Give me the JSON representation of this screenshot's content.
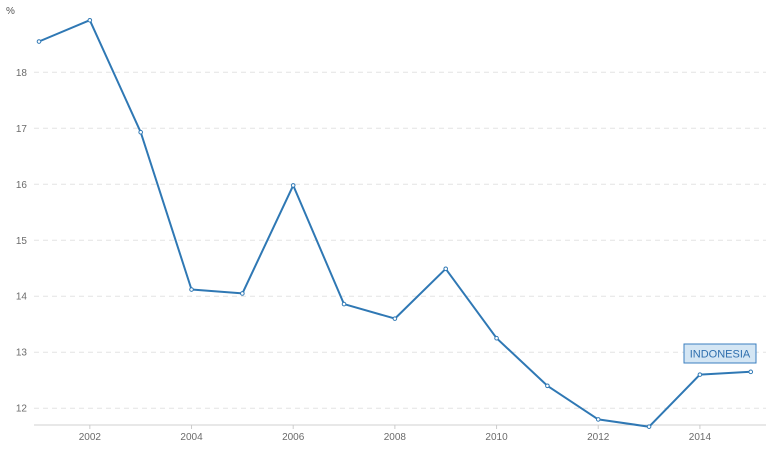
{
  "chart_data": {
    "type": "line",
    "title": "",
    "xlabel": "",
    "ylabel": "%",
    "x": [
      2001,
      2002,
      2003,
      2004,
      2005,
      2006,
      2007,
      2008,
      2009,
      2010,
      2011,
      2012,
      2013,
      2014,
      2015
    ],
    "x_ticks": [
      "2002",
      "2004",
      "2006",
      "2008",
      "2010",
      "2012",
      "2014"
    ],
    "y_ticks": [
      "12",
      "13",
      "14",
      "15",
      "16",
      "17",
      "18"
    ],
    "xlim": [
      2001,
      2015.3
    ],
    "ylim": [
      11.7,
      18.97
    ],
    "grid": true,
    "legend_placement": "end-of-line",
    "series": [
      {
        "name": "INDONESIA",
        "color": "#2f78b4",
        "values": [
          18.55,
          18.93,
          16.93,
          14.12,
          14.05,
          15.98,
          13.86,
          13.6,
          14.49,
          13.25,
          12.4,
          11.8,
          11.67,
          12.6,
          12.65
        ]
      }
    ]
  }
}
